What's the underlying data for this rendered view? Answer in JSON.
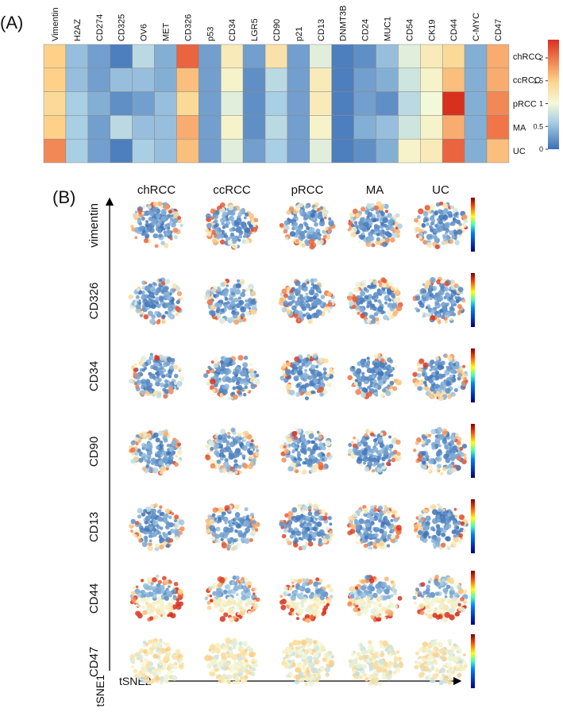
{
  "chart_data": [
    {
      "type": "heatmap",
      "panel_label": "(A)",
      "columns": [
        "Vimentin",
        "H2AZ",
        "CD274",
        "CD325",
        "OV6",
        "MET",
        "CD326",
        "p53",
        "CD34",
        "LGR5",
        "CD90",
        "p21",
        "CD13",
        "DNMT3B",
        "CD24",
        "MUC1",
        "CD54",
        "CK19",
        "CD44",
        "C-MYC",
        "CD47"
      ],
      "rows": [
        "chRCC",
        "ccRCC",
        "pRCC",
        "MA",
        "UC"
      ],
      "values": [
        [
          1.5,
          0.5,
          0.3,
          0.1,
          0.7,
          0.4,
          2.1,
          0.3,
          1.2,
          0.3,
          1.3,
          0.3,
          0.9,
          0.1,
          0.2,
          0.5,
          0.9,
          1.2,
          1.4,
          0.4,
          1.7
        ],
        [
          1.5,
          0.5,
          0.3,
          0.5,
          0.5,
          0.4,
          1.6,
          0.3,
          1.1,
          0.2,
          0.7,
          0.3,
          1.2,
          0.1,
          0.3,
          0.4,
          0.8,
          1.1,
          1.6,
          0.4,
          1.7
        ],
        [
          1.4,
          0.6,
          0.4,
          0.2,
          0.3,
          0.5,
          1.4,
          0.3,
          0.9,
          0.2,
          0.6,
          0.3,
          1.2,
          0.1,
          0.3,
          0.2,
          0.7,
          1.0,
          2.4,
          0.4,
          1.9
        ],
        [
          1.5,
          0.6,
          0.3,
          0.7,
          0.5,
          0.5,
          1.7,
          0.3,
          1.1,
          0.2,
          0.7,
          0.3,
          1.1,
          0.1,
          0.4,
          0.5,
          0.8,
          1.1,
          1.7,
          0.4,
          2.0
        ],
        [
          1.9,
          0.6,
          0.3,
          0.1,
          0.6,
          0.5,
          1.6,
          0.3,
          0.9,
          0.3,
          0.6,
          0.3,
          0.9,
          0.1,
          0.2,
          0.4,
          1.1,
          1.2,
          2.1,
          0.4,
          1.6
        ]
      ],
      "zlim": [
        0,
        2.4
      ],
      "zticks": [
        0,
        0.5,
        1,
        1.5,
        2
      ]
    },
    {
      "type": "tsne-grid",
      "panel_label": "(B)",
      "columns": [
        "chRCC",
        "ccRCC",
        "pRCC",
        "MA",
        "UC"
      ],
      "rows": [
        "vimentin",
        "CD326",
        "CD34",
        "CD90",
        "CD13",
        "CD44",
        "CD47"
      ],
      "y_label": "tSNE1",
      "x_label": "tSNE2"
    }
  ]
}
